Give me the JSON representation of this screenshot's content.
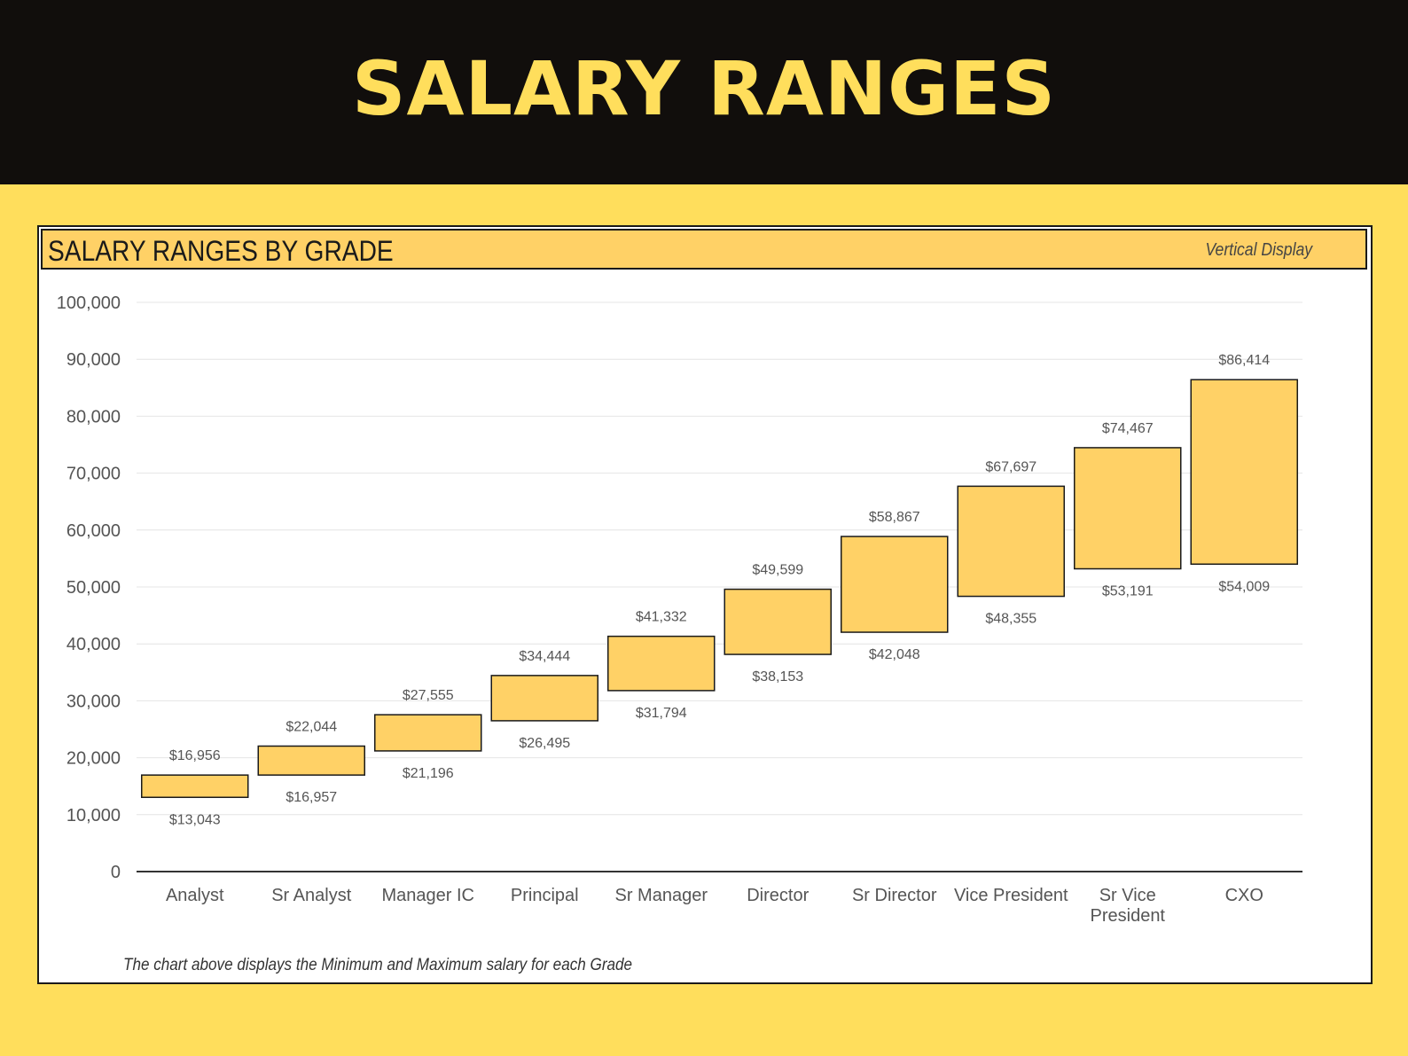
{
  "banner": {
    "title": "SALARY RANGES"
  },
  "card": {
    "title": "SALARY RANGES BY GRADE",
    "subtitle": "Vertical Display",
    "footnote": "The chart above displays the Minimum and Maximum salary for each Grade"
  },
  "colors": {
    "banner_bg": "#110E0C",
    "accent_yellow": "#FFDE5C",
    "bar_fill": "#FFD166",
    "bar_stroke": "#1a1a1a"
  },
  "chart_data": {
    "type": "bar",
    "subtype": "floating-range",
    "categories": [
      "Analyst",
      "Sr Analyst",
      "Manager IC",
      "Principal",
      "Sr Manager",
      "Director",
      "Sr Director",
      "Vice President",
      "Sr Vice President",
      "CXO"
    ],
    "category_label_lines": [
      [
        "Analyst"
      ],
      [
        "Sr Analyst"
      ],
      [
        "Manager IC"
      ],
      [
        "Principal"
      ],
      [
        "Sr Manager"
      ],
      [
        "Director"
      ],
      [
        "Sr Director"
      ],
      [
        "Vice President"
      ],
      [
        "Sr Vice",
        "President"
      ],
      [
        "CXO"
      ]
    ],
    "series": [
      {
        "name": "",
        "values": [
          13043,
          16957,
          21196,
          26495,
          31794,
          38153,
          42048,
          48355,
          53191,
          54009
        ]
      },
      {
        "name": "",
        "values": [
          16956,
          22044,
          27555,
          34444,
          41332,
          49599,
          58867,
          67697,
          74467,
          86414
        ]
      }
    ],
    "min_labels": [
      "$13,043",
      "$16,957",
      "$21,196",
      "$26,495",
      "$31,794",
      "$38,153",
      "$42,048",
      "$48,355",
      "$53,191",
      "$54,009"
    ],
    "max_labels": [
      "$16,956",
      "$22,044",
      "$27,555",
      "$34,444",
      "$41,332",
      "$49,599",
      "$58,867",
      "$67,697",
      "$74,467",
      "$86,414"
    ],
    "y_ticks": [
      0,
      10000,
      20000,
      30000,
      40000,
      50000,
      60000,
      70000,
      80000,
      90000,
      100000
    ],
    "y_tick_labels": [
      "0",
      "10,000",
      "20,000",
      "30,000",
      "40,000",
      "50,000",
      "60,000",
      "70,000",
      "80,000",
      "90,000",
      "100,000"
    ],
    "ylim": [
      0,
      100000
    ],
    "grid": true,
    "legend": false
  }
}
